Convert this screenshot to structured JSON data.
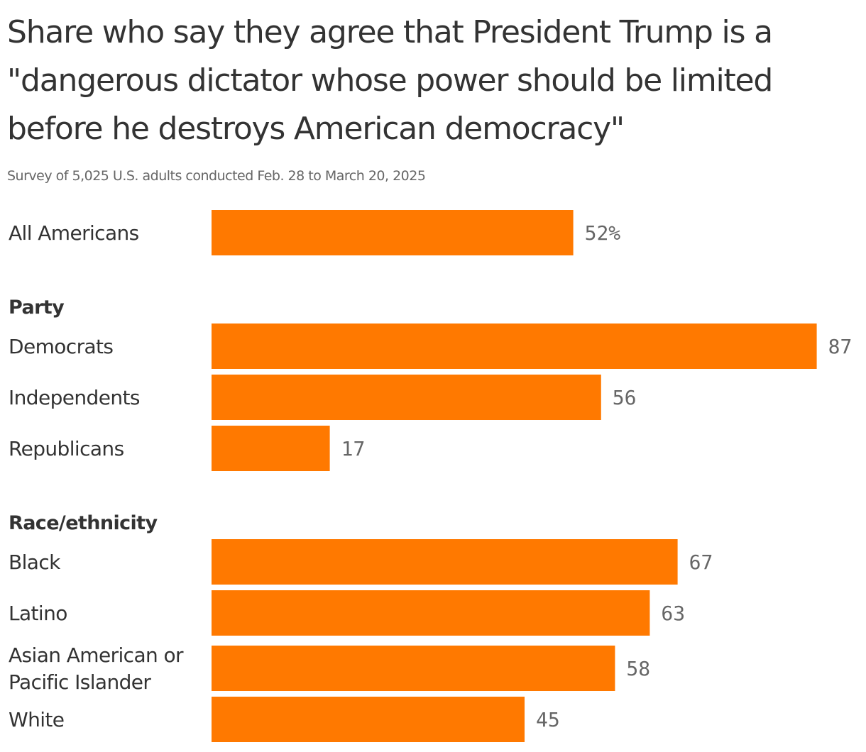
{
  "chart_data": {
    "type": "bar",
    "orientation": "horizontal",
    "title": "Share who say they agree that President Trump is a \"dangerous dictator whose power should be limited before he destroys American democracy\"",
    "subtitle": "Survey of 5,025 U.S. adults conducted Feb. 28 to March 20, 2025",
    "xlim": [
      0,
      100
    ],
    "grid": false,
    "bar_color": "#ff7900",
    "value_suffix_first": "%",
    "groups": [
      {
        "heading": "",
        "items": [
          {
            "label": [
              "All Americans"
            ],
            "value": 52
          }
        ]
      },
      {
        "heading": "Party",
        "items": [
          {
            "label": [
              "Democrats"
            ],
            "value": 87
          },
          {
            "label": [
              "Independents"
            ],
            "value": 56
          },
          {
            "label": [
              "Republicans"
            ],
            "value": 17
          }
        ]
      },
      {
        "heading": "Race/ethnicity",
        "items": [
          {
            "label": [
              "Black"
            ],
            "value": 67
          },
          {
            "label": [
              "Latino"
            ],
            "value": 63
          },
          {
            "label": [
              "Asian American or",
              "Pacific Islander"
            ],
            "value": 58
          },
          {
            "label": [
              "White"
            ],
            "value": 45
          }
        ]
      }
    ]
  }
}
